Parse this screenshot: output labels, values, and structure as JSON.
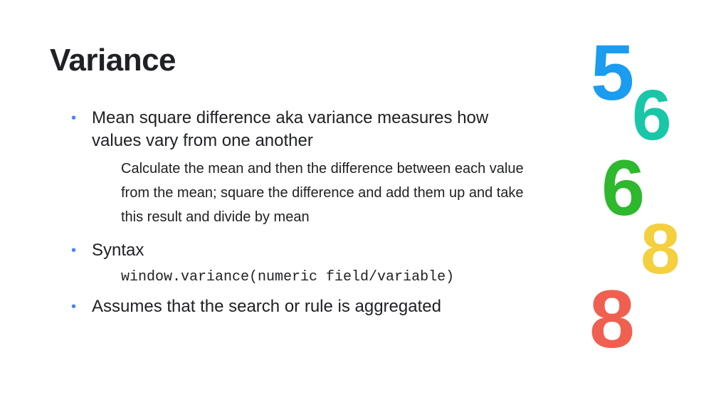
{
  "title": "Variance",
  "bullets": [
    {
      "text": "Mean square difference aka variance measures how values vary from one another",
      "sub": "Calculate the mean and then the difference between each value from the mean; square the difference and add them up and take this result and divide by mean"
    },
    {
      "text": "Syntax",
      "code": "window.variance(numeric field/variable)"
    },
    {
      "text": "Assumes that the search or rule is aggregated"
    }
  ],
  "bullet_color": "#4285f4",
  "text_color": "#202124",
  "title_fontsize": 44,
  "bullet_fontsize": 24,
  "sub_fontsize": 20,
  "code_fontsize": 20,
  "decorative_numbers": [
    {
      "glyph": "5",
      "color": "#1a9cf0"
    },
    {
      "glyph": "6",
      "color": "#1ac6a8"
    },
    {
      "glyph": "6",
      "color": "#2eb82e"
    },
    {
      "glyph": "8",
      "color": "#f4d03f"
    },
    {
      "glyph": "8",
      "color": "#f06050"
    }
  ],
  "background_color": "#ffffff"
}
